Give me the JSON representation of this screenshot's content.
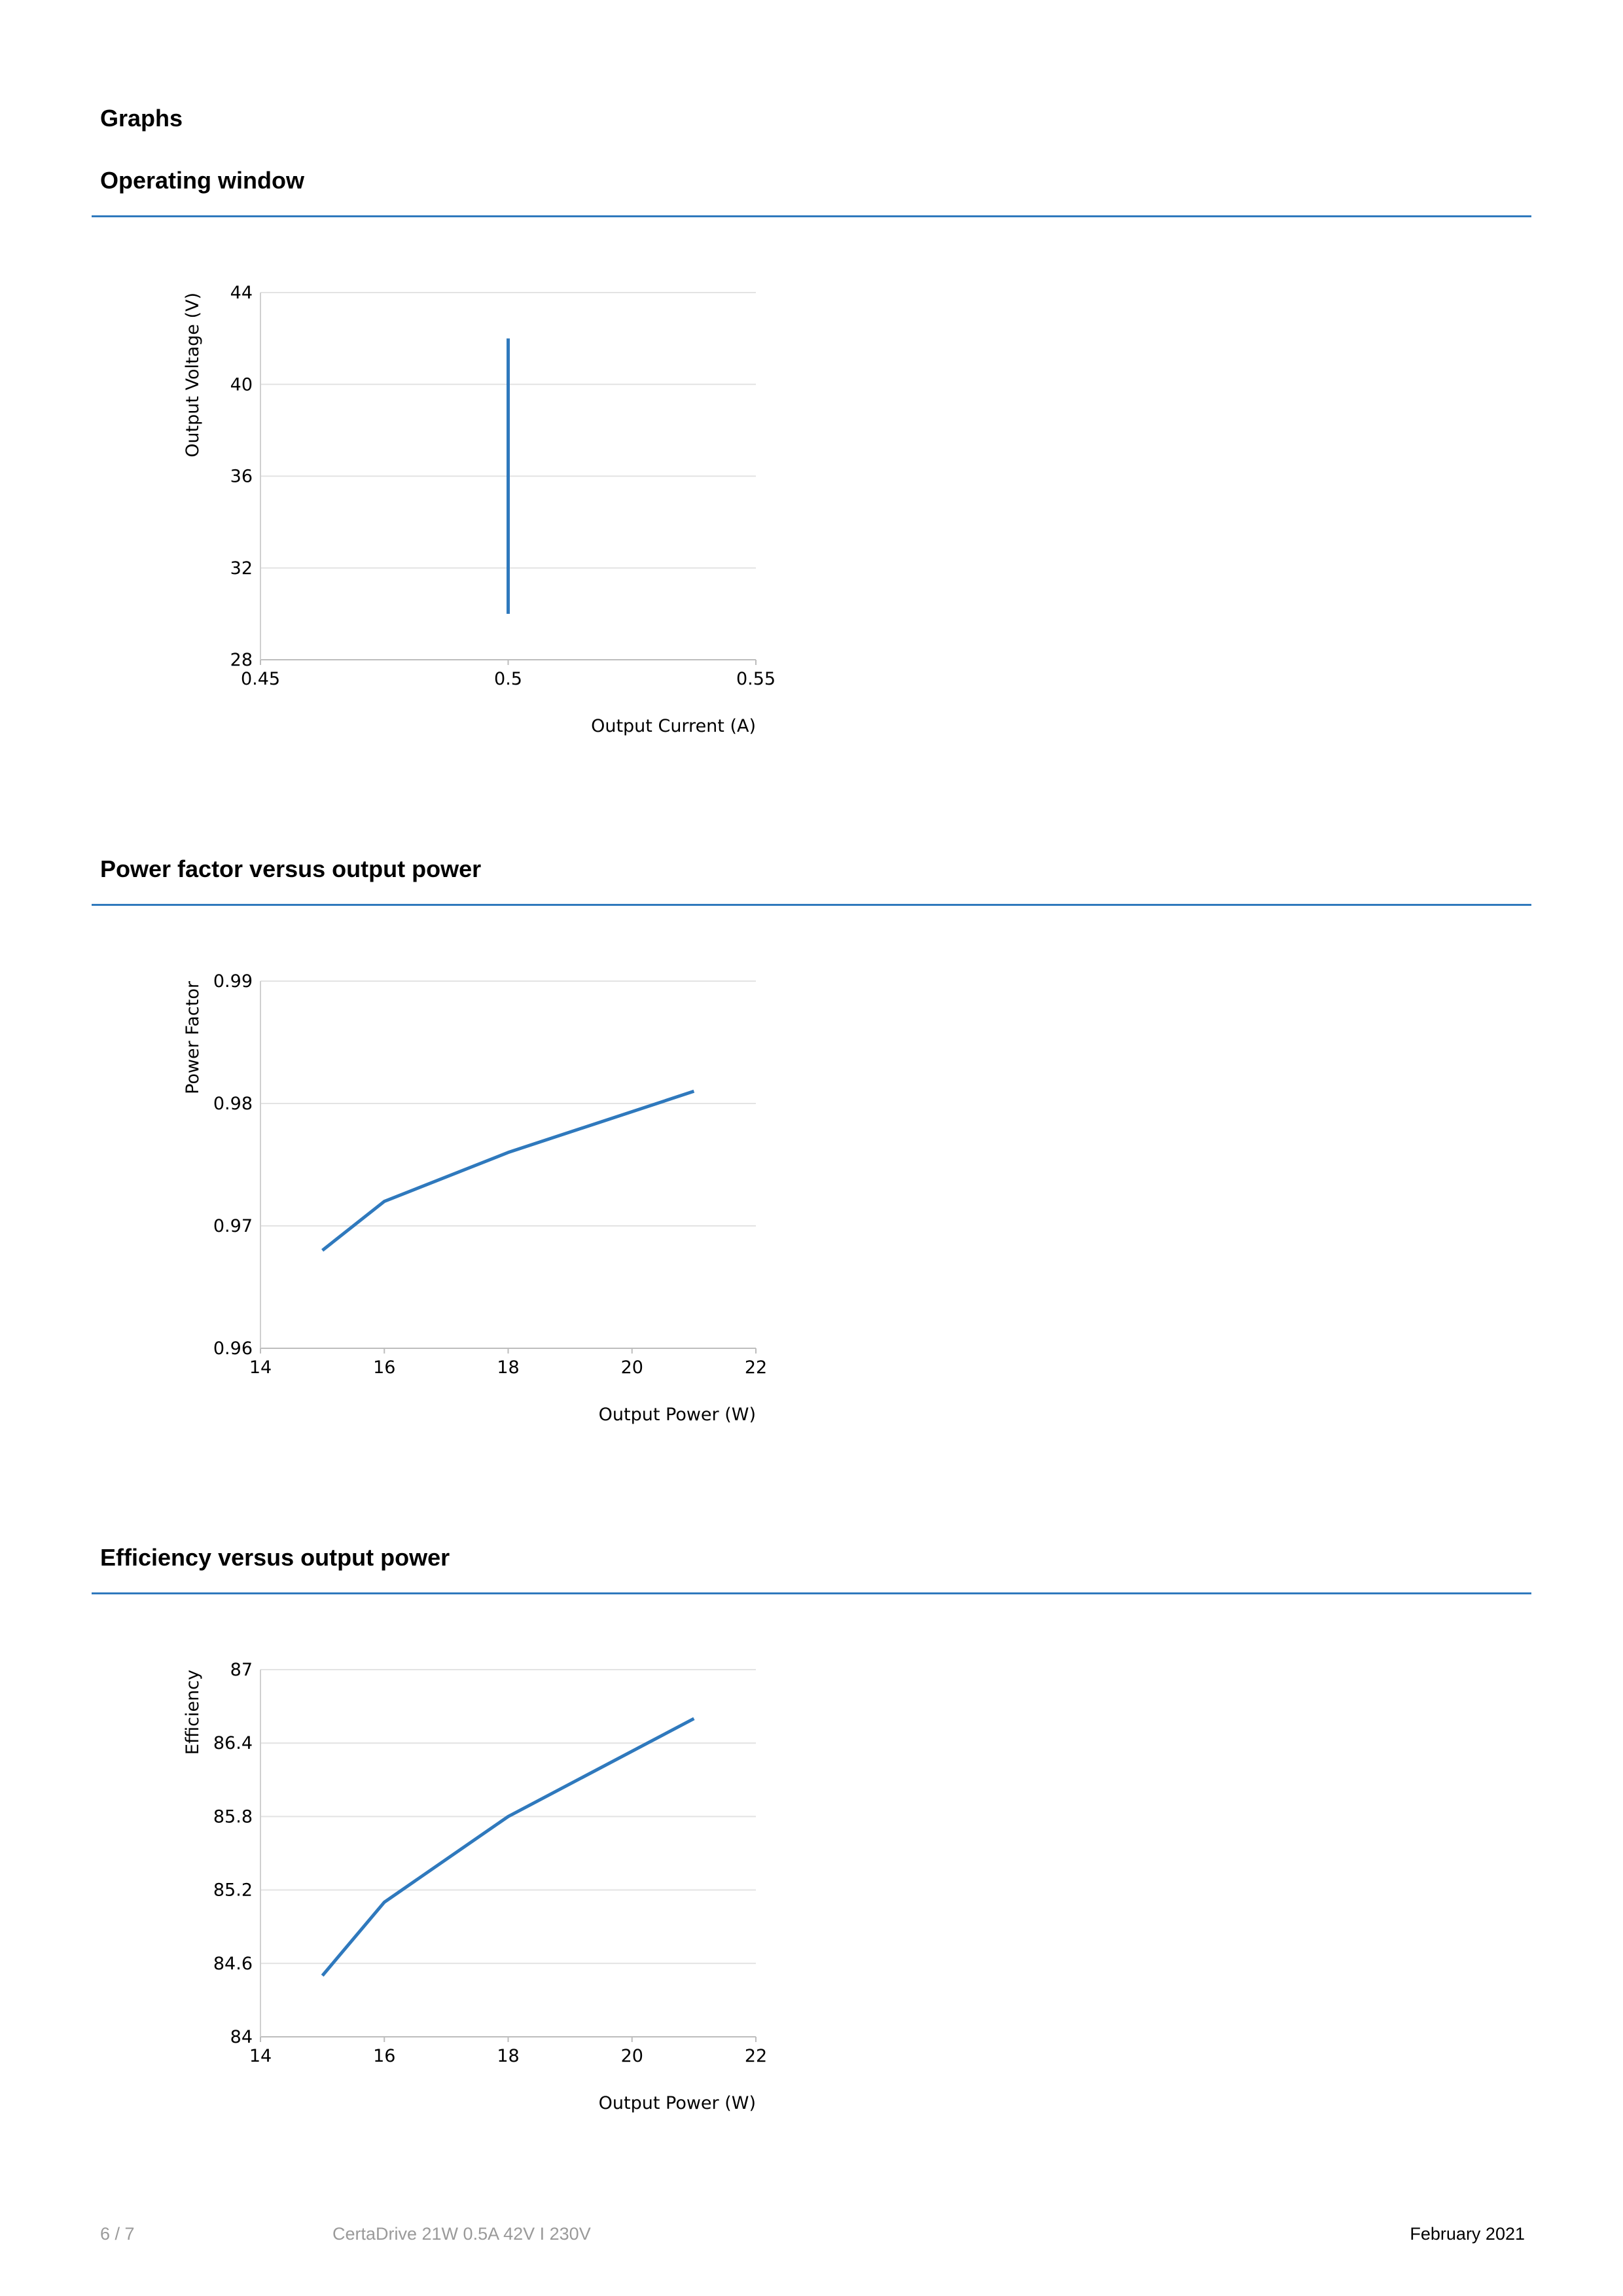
{
  "page_heading": "Graphs",
  "sections": [
    {
      "title": "Operating window"
    },
    {
      "title": "Power factor versus output power"
    },
    {
      "title": "Efficiency versus output power"
    }
  ],
  "chart_data": [
    {
      "type": "line",
      "title": "Operating window",
      "xlabel": "Output Current (A)",
      "ylabel": "Output Voltage (V)",
      "xlim": [
        0.45,
        0.55
      ],
      "ylim": [
        28,
        44
      ],
      "xticks": [
        "0.45",
        "0.5",
        "0.55"
      ],
      "yticks": [
        "28",
        "32",
        "36",
        "40",
        "44"
      ],
      "grid": true,
      "color": "#2f79bd",
      "series": [
        {
          "x": [
            0.5,
            0.5
          ],
          "y": [
            30,
            42
          ]
        }
      ]
    },
    {
      "type": "line",
      "title": "Power factor versus output power",
      "xlabel": "Output Power (W)",
      "ylabel": "Power Factor",
      "xlim": [
        14,
        22
      ],
      "ylim": [
        0.96,
        0.99
      ],
      "xticks": [
        "14",
        "16",
        "18",
        "20",
        "22"
      ],
      "yticks": [
        "0.96",
        "0.97",
        "0.98",
        "0.99"
      ],
      "grid": true,
      "color": "#2f79bd",
      "series": [
        {
          "x": [
            15,
            16,
            18,
            21
          ],
          "y": [
            0.968,
            0.972,
            0.976,
            0.981
          ]
        }
      ]
    },
    {
      "type": "line",
      "title": "Efficiency versus output power",
      "xlabel": "Output Power (W)",
      "ylabel": "Efficiency",
      "xlim": [
        14,
        22
      ],
      "ylim": [
        84,
        87
      ],
      "xticks": [
        "14",
        "16",
        "18",
        "20",
        "22"
      ],
      "yticks": [
        "84",
        "84.6",
        "85.2",
        "85.8",
        "86.4",
        "87"
      ],
      "grid": true,
      "color": "#2f79bd",
      "series": [
        {
          "x": [
            15,
            16,
            18,
            21
          ],
          "y": [
            84.5,
            85.1,
            85.8,
            86.6
          ]
        }
      ]
    }
  ],
  "footer": {
    "page_number": "6 / 7",
    "product": "CertaDrive 21W 0.5A 42V I 230V",
    "date": "February 2021"
  }
}
